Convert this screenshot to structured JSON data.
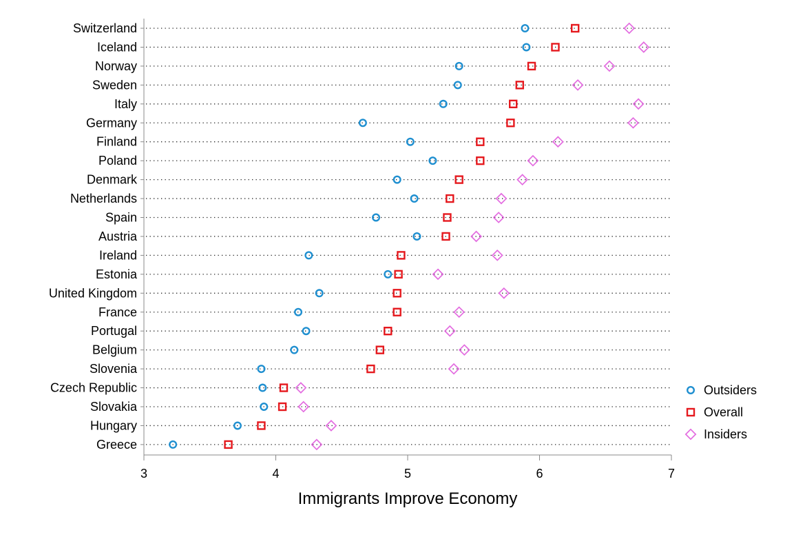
{
  "chart_data": {
    "type": "scatter",
    "xlabel": "Immigrants Improve Economy",
    "xlim": [
      3,
      7
    ],
    "xticks": [
      3,
      4,
      5,
      6,
      7
    ],
    "tick_labels": [
      "3",
      "4",
      "5",
      "6",
      "7"
    ],
    "legend_position": "bottom-right",
    "categories": [
      "Switzerland",
      "Iceland",
      "Norway",
      "Sweden",
      "Italy",
      "Germany",
      "Finland",
      "Poland",
      "Denmark",
      "Netherlands",
      "Spain",
      "Austria",
      "Ireland",
      "Estonia",
      "United Kingdom",
      "France",
      "Portugal",
      "Belgium",
      "Slovenia",
      "Czech Republic",
      "Slovakia",
      "Hungary",
      "Greece"
    ],
    "series": [
      {
        "name": "Outsiders",
        "marker": "circle",
        "color": "#1f8fd0",
        "values": [
          5.89,
          5.9,
          5.39,
          5.38,
          5.27,
          4.66,
          5.02,
          5.19,
          4.92,
          5.05,
          4.76,
          5.07,
          4.25,
          4.85,
          4.33,
          4.17,
          4.23,
          4.14,
          3.89,
          3.9,
          3.91,
          3.71,
          3.22
        ]
      },
      {
        "name": "Overall",
        "marker": "square",
        "color": "#e5191e",
        "values": [
          6.27,
          6.12,
          5.94,
          5.85,
          5.8,
          5.78,
          5.55,
          5.55,
          5.39,
          5.32,
          5.3,
          5.29,
          4.95,
          4.93,
          4.92,
          4.92,
          4.85,
          4.79,
          4.72,
          4.06,
          4.05,
          3.89,
          3.64
        ]
      },
      {
        "name": "Insiders",
        "marker": "diamond",
        "color": "#e36be0",
        "values": [
          6.68,
          6.79,
          6.53,
          6.29,
          6.75,
          6.71,
          6.14,
          5.95,
          5.87,
          5.71,
          5.69,
          5.52,
          5.68,
          5.23,
          5.73,
          5.39,
          5.32,
          5.43,
          5.35,
          4.19,
          4.21,
          4.42,
          4.31
        ]
      }
    ]
  }
}
